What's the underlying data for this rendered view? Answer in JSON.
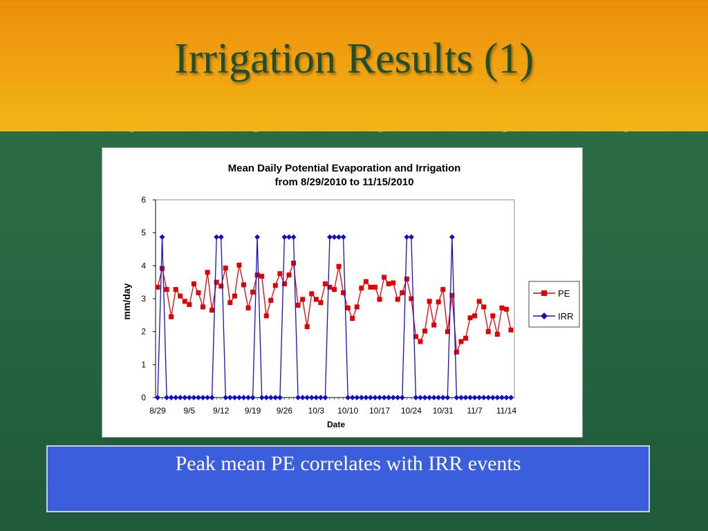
{
  "slide": {
    "title": "Irrigation Results (1)",
    "caption": "Peak mean PE correlates with IRR events"
  },
  "colors": {
    "banner": "#f0a010",
    "background": "#2a6a43",
    "title": "#1f4f33",
    "caption_box": "#3b5fdc",
    "pe": "#e00000",
    "irr": "#1010c8"
  },
  "chart_data": {
    "type": "line",
    "title": "Mean Daily Potential Evaporation and Irrigation",
    "subtitle": "from 8/29/2010 to 11/15/2010",
    "xlabel": "Date",
    "ylabel": "mm/day",
    "ylim": [
      0,
      6
    ],
    "yticks": [
      0,
      1,
      2,
      3,
      4,
      5,
      6
    ],
    "x": [
      "8/29",
      "8/30",
      "8/31",
      "9/1",
      "9/2",
      "9/3",
      "9/4",
      "9/5",
      "9/6",
      "9/7",
      "9/8",
      "9/9",
      "9/10",
      "9/11",
      "9/12",
      "9/13",
      "9/14",
      "9/15",
      "9/16",
      "9/17",
      "9/18",
      "9/19",
      "9/20",
      "9/21",
      "9/22",
      "9/23",
      "9/24",
      "9/25",
      "9/26",
      "9/27",
      "9/28",
      "9/29",
      "9/30",
      "10/1",
      "10/2",
      "10/3",
      "10/4",
      "10/5",
      "10/6",
      "10/7",
      "10/8",
      "10/9",
      "10/10",
      "10/11",
      "10/12",
      "10/13",
      "10/14",
      "10/15",
      "10/16",
      "10/17",
      "10/18",
      "10/19",
      "10/20",
      "10/21",
      "10/22",
      "10/23",
      "10/24",
      "10/25",
      "10/26",
      "10/27",
      "10/28",
      "10/29",
      "10/30",
      "10/31",
      "11/1",
      "11/2",
      "11/3",
      "11/4",
      "11/5",
      "11/6",
      "11/7",
      "11/8",
      "11/9",
      "11/10",
      "11/11",
      "11/12",
      "11/13",
      "11/14",
      "11/15"
    ],
    "xtick_labels": [
      "8/29",
      "9/5",
      "9/12",
      "9/19",
      "9/26",
      "10/3",
      "10/10",
      "10/17",
      "10/24",
      "10/31",
      "11/7",
      "11/14"
    ],
    "grid": false,
    "legend": "right",
    "series": [
      {
        "name": "PE",
        "marker": "square",
        "values": [
          3.35,
          3.92,
          3.28,
          2.45,
          3.28,
          3.08,
          2.92,
          2.82,
          3.45,
          3.18,
          2.75,
          3.8,
          2.65,
          3.5,
          3.38,
          3.93,
          2.88,
          3.08,
          4.02,
          3.42,
          2.72,
          3.2,
          3.72,
          3.68,
          2.48,
          2.95,
          3.4,
          3.76,
          3.45,
          3.72,
          4.08,
          2.8,
          2.98,
          2.15,
          3.15,
          2.98,
          2.88,
          3.45,
          3.35,
          3.28,
          3.98,
          3.18,
          2.72,
          2.4,
          2.75,
          3.32,
          3.52,
          3.35,
          3.35,
          2.98,
          3.65,
          3.45,
          3.48,
          2.98,
          3.18,
          3.6,
          3.0,
          1.85,
          1.7,
          2.02,
          2.92,
          2.2,
          2.9,
          3.28,
          2.0,
          3.1,
          1.38,
          1.7,
          1.8,
          2.42,
          2.48,
          2.92,
          2.75,
          2.0,
          2.48,
          1.92,
          2.72,
          2.68,
          2.05
        ]
      },
      {
        "name": "IRR",
        "marker": "diamond",
        "values": [
          0,
          4.87,
          0,
          0,
          0,
          0,
          0,
          0,
          0,
          0,
          0,
          0,
          0,
          4.87,
          4.87,
          0,
          0,
          0,
          0,
          0,
          0,
          0,
          4.87,
          0,
          0,
          0,
          0,
          0,
          4.87,
          4.87,
          4.87,
          0,
          0,
          0,
          0,
          0,
          0,
          0,
          4.87,
          4.87,
          4.87,
          4.87,
          0,
          0,
          0,
          0,
          0,
          0,
          0,
          0,
          0,
          0,
          0,
          0,
          0,
          4.87,
          4.87,
          0,
          0,
          0,
          0,
          0,
          0,
          0,
          0,
          4.87,
          0,
          0,
          0,
          0,
          0,
          0,
          0,
          0,
          0,
          0,
          0,
          0,
          0
        ]
      }
    ]
  }
}
